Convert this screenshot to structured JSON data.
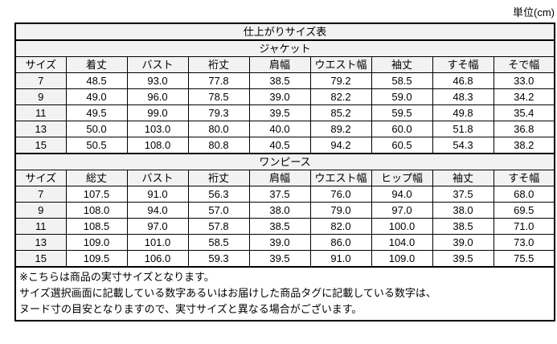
{
  "unit_label": "単位(cm)",
  "title": "仕上がりサイズ表",
  "chart_data": [
    {
      "type": "table",
      "title": "ジャケット",
      "columns": [
        "サイズ",
        "着丈",
        "バスト",
        "裄丈",
        "肩幅",
        "ウエスト幅",
        "袖丈",
        "すそ幅",
        "そで幅"
      ],
      "rows": [
        [
          "7",
          "48.5",
          "93.0",
          "77.8",
          "38.5",
          "79.2",
          "58.5",
          "46.8",
          "33.0"
        ],
        [
          "9",
          "49.0",
          "96.0",
          "78.5",
          "39.0",
          "82.2",
          "59.0",
          "48.3",
          "34.2"
        ],
        [
          "11",
          "49.5",
          "99.0",
          "79.3",
          "39.5",
          "85.2",
          "59.5",
          "49.8",
          "35.4"
        ],
        [
          "13",
          "50.0",
          "103.0",
          "80.0",
          "40.0",
          "89.2",
          "60.0",
          "51.8",
          "36.8"
        ],
        [
          "15",
          "50.5",
          "108.0",
          "80.8",
          "40.5",
          "94.2",
          "60.5",
          "54.3",
          "38.2"
        ]
      ]
    },
    {
      "type": "table",
      "title": "ワンピース",
      "columns": [
        "サイズ",
        "総丈",
        "バスト",
        "裄丈",
        "肩幅",
        "ウエスト幅",
        "ヒップ幅",
        "袖丈",
        "すそ幅"
      ],
      "rows": [
        [
          "7",
          "107.5",
          "91.0",
          "56.3",
          "37.5",
          "76.0",
          "94.0",
          "37.5",
          "68.0"
        ],
        [
          "9",
          "108.0",
          "94.0",
          "57.0",
          "38.0",
          "79.0",
          "97.0",
          "38.0",
          "69.5"
        ],
        [
          "11",
          "108.5",
          "97.0",
          "57.8",
          "38.5",
          "82.0",
          "100.0",
          "38.5",
          "71.0"
        ],
        [
          "13",
          "109.0",
          "101.0",
          "58.5",
          "39.0",
          "86.0",
          "104.0",
          "39.0",
          "73.0"
        ],
        [
          "15",
          "109.5",
          "106.0",
          "59.3",
          "39.5",
          "91.0",
          "109.0",
          "39.5",
          "75.5"
        ]
      ]
    }
  ],
  "notes": [
    "※こちらは商品の実寸サイズとなります。",
    "サイズ選択画面に記載している数字あるいはお届けした商品タグに記載している数字は、",
    "ヌード寸の目安となりますので、実寸サイズと異なる場合がございます。"
  ],
  "colors": {
    "header_bg": "#f2f2f2",
    "border": "#000000",
    "text": "#000000",
    "background": "#ffffff"
  }
}
